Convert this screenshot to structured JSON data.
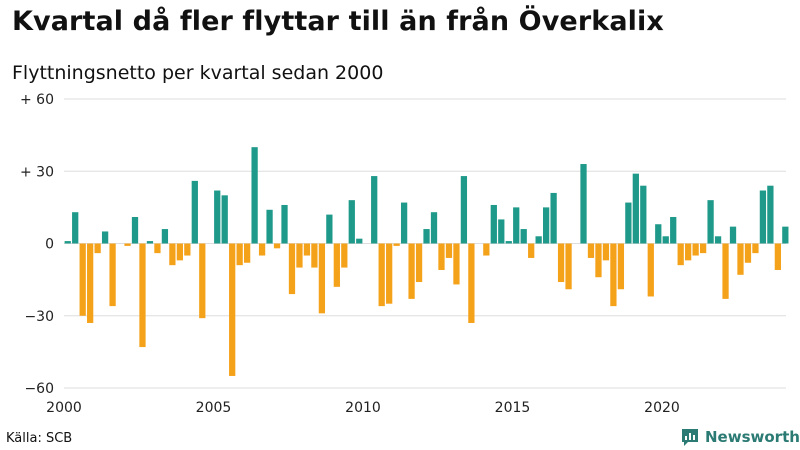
{
  "header": {
    "title": "Kvartal då fler flyttar till än från Överkalix",
    "subtitle": "Flyttningsnetto per kvartal sedan 2000"
  },
  "footer": {
    "source": "Källa: SCB",
    "brand": "Newsworthy"
  },
  "colors": {
    "positive": "#1f9a8a",
    "negative": "#f5a21b",
    "grid": "#dddddd",
    "brand": "#2b7a73"
  },
  "icons": {
    "brand_logo": "bar-chart-speech-bubble-icon"
  },
  "chart_data": {
    "type": "bar",
    "title": "Kvartal då fler flyttar till än från Överkalix",
    "subtitle": "Flyttningsnetto per kvartal sedan 2000",
    "xlabel": "",
    "ylabel": "",
    "ylim": [
      -60,
      60
    ],
    "grid": true,
    "y_ticks": [
      60,
      30,
      0,
      -30,
      -60
    ],
    "y_tick_labels": [
      "+ 60",
      "+ 30",
      "0",
      "−30",
      "−60"
    ],
    "x_ticks": [
      2000,
      2005,
      2010,
      2015,
      2020
    ],
    "x_tick_labels": [
      "2000",
      "2005",
      "2010",
      "2015",
      "2020"
    ],
    "start_year": 2000,
    "quarters_per_year": 4,
    "values": [
      1,
      13,
      -30,
      -33,
      -4,
      5,
      -26,
      0,
      -1,
      11,
      -43,
      1,
      -4,
      6,
      -9,
      -7,
      -5,
      26,
      -31,
      0,
      22,
      20,
      -55,
      -9,
      -8,
      40,
      -5,
      14,
      -2,
      16,
      -21,
      -10,
      -5,
      -10,
      -29,
      12,
      -18,
      -10,
      18,
      2,
      0,
      28,
      -26,
      -25,
      -1,
      17,
      -23,
      -16,
      6,
      13,
      -11,
      -6,
      -17,
      28,
      -33,
      0,
      -5,
      16,
      10,
      1,
      15,
      6,
      -6,
      3,
      15,
      21,
      -16,
      -19,
      0,
      33,
      -6,
      -14,
      -7,
      -26,
      -19,
      17,
      29,
      24,
      -22,
      8,
      3,
      11,
      -9,
      -7,
      -5,
      -4,
      18,
      3,
      -23,
      7,
      -13,
      -8,
      -4,
      22,
      24,
      -11,
      7
    ]
  }
}
